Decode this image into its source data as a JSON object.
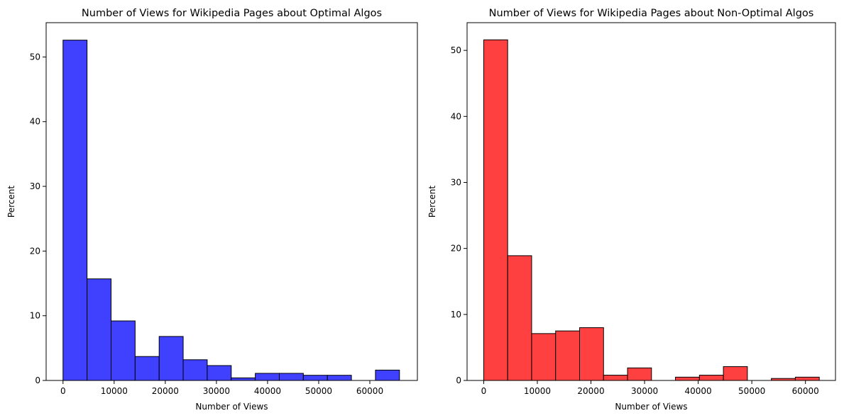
{
  "chart_data": [
    {
      "type": "bar",
      "title": "Number of Views for Wikipedia Pages about Optimal Algos",
      "xlabel": "Number of Views",
      "ylabel": "Percent",
      "xlim": [
        -3300,
        69300
      ],
      "ylim": [
        0,
        55.3
      ],
      "xticks": [
        0,
        10000,
        20000,
        30000,
        40000,
        50000,
        60000
      ],
      "xtick_labels": [
        "0",
        "10000",
        "20000",
        "30000",
        "40000",
        "50000",
        "60000"
      ],
      "yticks": [
        0,
        10,
        20,
        30,
        40,
        50
      ],
      "ytick_labels": [
        "0",
        "10",
        "20",
        "30",
        "40",
        "50"
      ],
      "bin_edges": [
        0,
        4700,
        9400,
        14100,
        18800,
        23500,
        28200,
        32900,
        37600,
        42300,
        47000,
        51700,
        56400,
        61100,
        65800
      ],
      "values": [
        52.6,
        15.7,
        9.2,
        3.7,
        6.8,
        3.2,
        2.3,
        0.4,
        1.1,
        1.1,
        0.8,
        0.8,
        0.0,
        1.6
      ],
      "color": "#4040ff",
      "edgecolor": "#000000",
      "grid": false
    },
    {
      "type": "bar",
      "title": "Number of Views for Wikipedia Pages about Non-Optimal Algos",
      "xlabel": "Number of Views",
      "ylabel": "Percent",
      "xlim": [
        -3100,
        65600
      ],
      "ylim": [
        0,
        54.2
      ],
      "xticks": [
        0,
        10000,
        20000,
        30000,
        40000,
        50000,
        60000
      ],
      "xtick_labels": [
        "0",
        "10000",
        "20000",
        "30000",
        "40000",
        "50000",
        "60000"
      ],
      "yticks": [
        0,
        10,
        20,
        30,
        40,
        50
      ],
      "ytick_labels": [
        "0",
        "10",
        "20",
        "30",
        "40",
        "50"
      ],
      "bin_edges": [
        0,
        4470,
        8940,
        13410,
        17880,
        22350,
        26820,
        31290,
        35760,
        40230,
        44700,
        49170,
        53640,
        58110,
        62580
      ],
      "values": [
        51.6,
        18.9,
        7.1,
        7.5,
        8.0,
        0.8,
        1.9,
        0.0,
        0.5,
        0.8,
        2.1,
        0.0,
        0.3,
        0.5
      ],
      "color": "#ff4040",
      "edgecolor": "#000000",
      "grid": false
    }
  ]
}
